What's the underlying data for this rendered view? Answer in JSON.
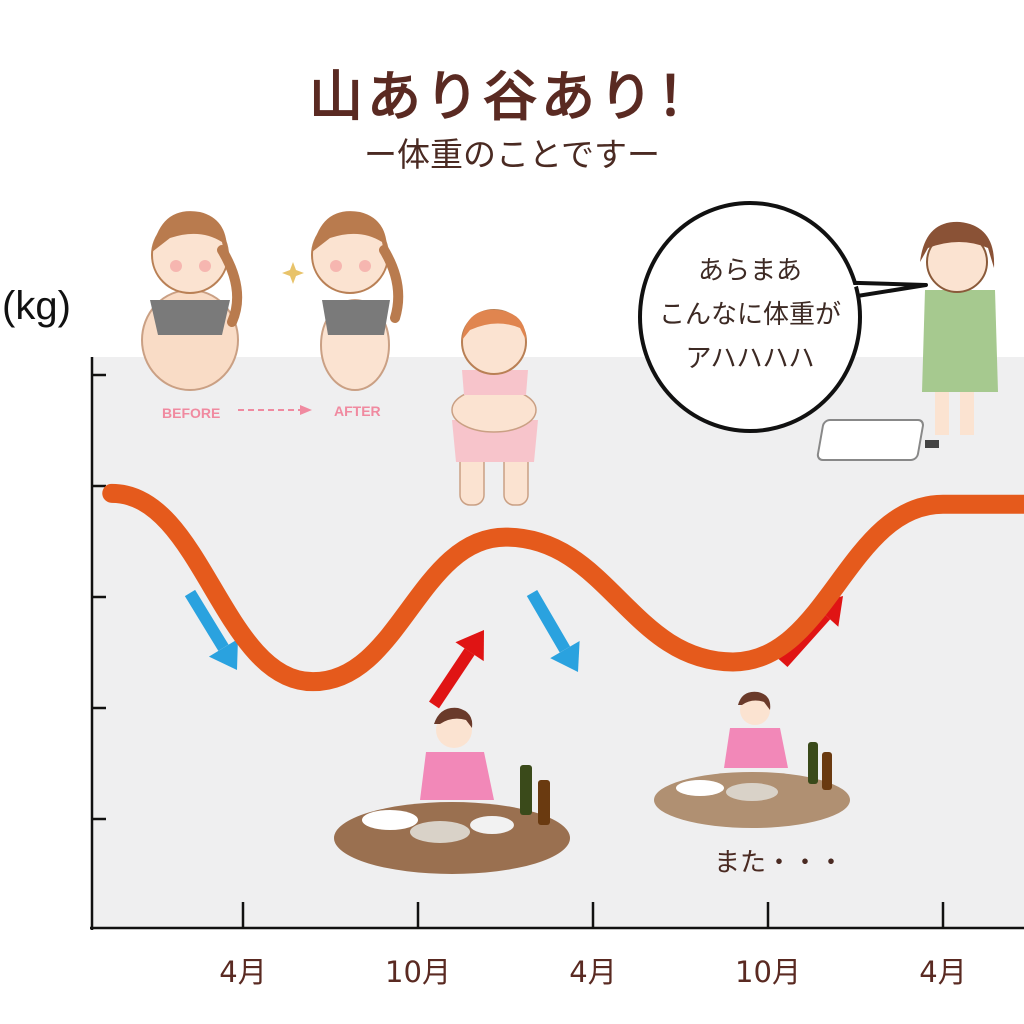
{
  "header": {
    "title": "山あり谷あり！",
    "subtitle": "ー体重のことですー"
  },
  "speech_bubble": {
    "lines": [
      "あらまあ",
      "こんなに体重が",
      "アハハハハ"
    ]
  },
  "illustration_labels": {
    "before": "BEFORE",
    "after": "AFTER"
  },
  "note": "また・・・",
  "colors": {
    "curve": "#e55a1c",
    "plot_background": "#efeff0",
    "down_arrow": "#2aa2df",
    "up_arrow": "#e01414",
    "text": "#5a2a22"
  },
  "chart_data": {
    "type": "line",
    "title": "山あり谷あり！",
    "subtitle": "ー体重のことですー",
    "ylabel": "(kg)",
    "xlabel": "",
    "x_tick_labels": [
      "4月",
      "10月",
      "4月",
      "10月",
      "4月"
    ],
    "y_ticks_count": 5,
    "y_tick_labels": [],
    "grid": false,
    "legend": "none",
    "series": [
      {
        "values_note": "qualitative wave, relative levels 0 (low) to 1 (high)",
        "points": [
          {
            "x": 0.25,
            "y": 0.93
          },
          {
            "x": 1.4,
            "y": 0.07
          },
          {
            "x": 2.5,
            "y": 0.73
          },
          {
            "x": 3.8,
            "y": 0.16
          },
          {
            "x": 5.0,
            "y": 0.88
          },
          {
            "x": 5.5,
            "y": 0.88
          }
        ]
      }
    ],
    "annotations": {
      "down_arrows": 2,
      "up_arrows": 2
    }
  }
}
